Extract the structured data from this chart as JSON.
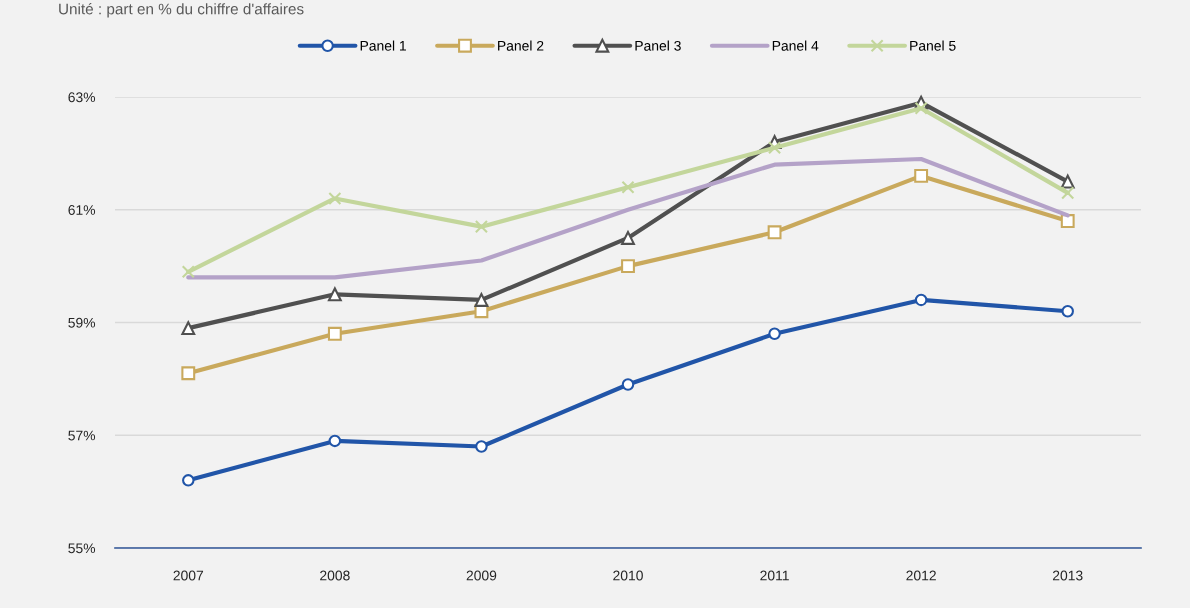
{
  "chart_data": {
    "type": "line",
    "subtitle": "Unité : part en % du chiffre d'affaires",
    "categories": [
      "2007",
      "2008",
      "2009",
      "2010",
      "2011",
      "2012",
      "2013"
    ],
    "series": [
      {
        "name": "Panel 1",
        "color": "#2155a8",
        "marker": "circle",
        "values": [
          56.2,
          56.9,
          56.8,
          57.9,
          58.8,
          59.4,
          59.2
        ]
      },
      {
        "name": "Panel 2",
        "color": "#c9a95c",
        "marker": "square",
        "values": [
          58.1,
          58.8,
          59.2,
          60.0,
          60.6,
          61.6,
          60.8
        ]
      },
      {
        "name": "Panel 3",
        "color": "#505050",
        "marker": "triangle",
        "values": [
          58.9,
          59.5,
          59.4,
          60.5,
          62.2,
          62.9,
          61.5
        ]
      },
      {
        "name": "Panel 4",
        "color": "#b4a2c8",
        "marker": "none",
        "values": [
          59.8,
          59.8,
          60.1,
          61.0,
          61.8,
          61.9,
          60.9
        ]
      },
      {
        "name": "Panel 5",
        "color": "#c3d69b",
        "marker": "cross",
        "values": [
          59.9,
          61.2,
          60.7,
          61.4,
          62.1,
          62.8,
          61.3
        ]
      }
    ],
    "ylim": [
      55,
      63
    ],
    "yticks": [
      {
        "value": 55,
        "label": "55%"
      },
      {
        "value": 57,
        "label": "57%"
      },
      {
        "value": 59,
        "label": "59%"
      },
      {
        "value": 61,
        "label": "61%"
      },
      {
        "value": 63,
        "label": "63%"
      }
    ],
    "grid": "y",
    "legend": "top",
    "line_style": "solid"
  }
}
